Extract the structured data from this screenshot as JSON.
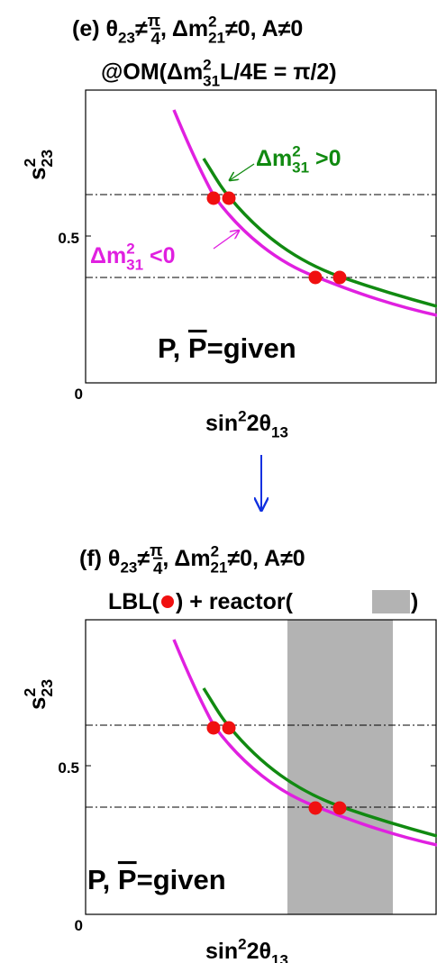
{
  "panels": [
    {
      "title": [
        "(e) θ",
        "23",
        "≠",
        "π",
        "4",
        ", Δm",
        "2",
        "21",
        "≠0, A≠0"
      ],
      "subtitle": [
        "@OM(Δm",
        "2",
        "31",
        "L/4E = π/2)"
      ],
      "y_label": [
        "s",
        "2",
        "23"
      ],
      "y_ticks": [
        "0.5",
        "0"
      ],
      "x_label": [
        "sin",
        "2",
        "2θ",
        "13"
      ],
      "annotation_positive": [
        "Δm",
        "2",
        "31",
        " >0"
      ],
      "annotation_negative": [
        "Δm",
        "2",
        "31",
        " <0"
      ],
      "given": [
        "P,  ",
        "P",
        "=given"
      ]
    },
    {
      "title": [
        "(f) θ",
        "23",
        "≠",
        "π",
        "4",
        ", Δm",
        "2",
        "21",
        "≠0, A≠0"
      ],
      "subtitle": [
        "LBL(",
        ")  +  reactor(",
        ")"
      ],
      "y_label": [
        "s",
        "2",
        "23"
      ],
      "y_ticks": [
        "0.5",
        "0"
      ],
      "x_label": [
        "sin",
        "2",
        "2θ",
        "13"
      ],
      "given": [
        "P,  ",
        "P",
        "=given"
      ]
    }
  ]
}
